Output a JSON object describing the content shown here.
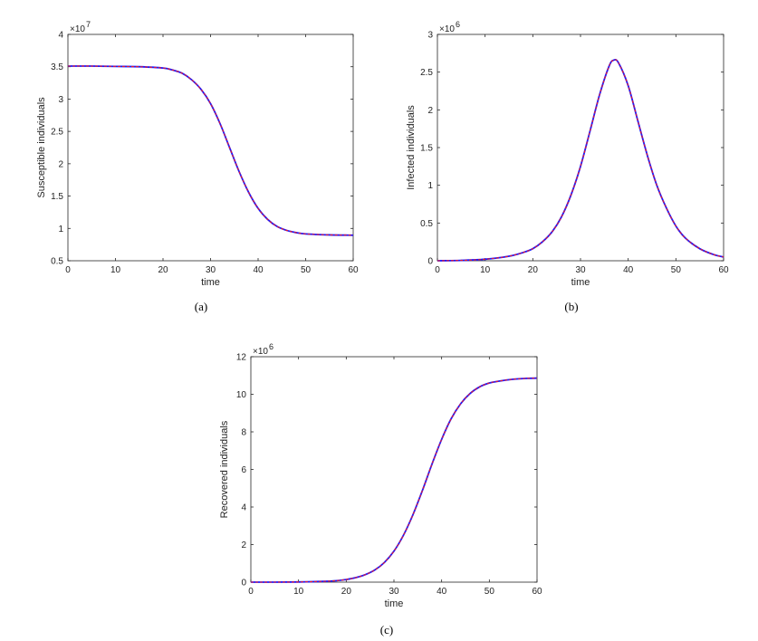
{
  "colors": {
    "axis": "#262626",
    "series_a": "#1a1aff",
    "series_b": "#e8162b",
    "background": "#ffffff"
  },
  "chart_data": [
    {
      "type": "line",
      "caption": "(a)",
      "xlabel": "time",
      "ylabel": "Susceptible individuals",
      "multiplier": "×10",
      "exponent": "7",
      "xlim": [
        0,
        60
      ],
      "ylim": [
        0.5,
        4
      ],
      "xticks": [
        0,
        10,
        20,
        30,
        40,
        50,
        60
      ],
      "yticks": [
        0.5,
        1,
        1.5,
        2,
        2.5,
        3,
        3.5,
        4
      ],
      "ytick_labels": [
        "0.5",
        "1",
        "1.5",
        "2",
        "2.5",
        "3",
        "3.5",
        "4"
      ],
      "grid": false,
      "x": [
        0,
        5,
        10,
        15,
        20,
        22,
        24,
        26,
        28,
        30,
        32,
        34,
        36,
        38,
        40,
        42,
        44,
        46,
        48,
        50,
        55,
        60
      ],
      "series": [
        {
          "values": [
            3.51,
            3.51,
            3.505,
            3.5,
            3.48,
            3.45,
            3.4,
            3.3,
            3.15,
            2.93,
            2.62,
            2.25,
            1.88,
            1.56,
            1.31,
            1.14,
            1.03,
            0.97,
            0.935,
            0.915,
            0.9,
            0.895
          ]
        },
        {
          "values": [
            3.51,
            3.51,
            3.505,
            3.5,
            3.48,
            3.45,
            3.4,
            3.3,
            3.15,
            2.93,
            2.62,
            2.25,
            1.88,
            1.56,
            1.31,
            1.14,
            1.03,
            0.97,
            0.935,
            0.915,
            0.9,
            0.895
          ]
        }
      ]
    },
    {
      "type": "line",
      "caption": "(b)",
      "xlabel": "time",
      "ylabel": "Infected individuals",
      "multiplier": "×10",
      "exponent": "6",
      "xlim": [
        0,
        60
      ],
      "ylim": [
        0,
        3
      ],
      "xticks": [
        0,
        10,
        20,
        30,
        40,
        50,
        60
      ],
      "yticks": [
        0,
        0.5,
        1,
        1.5,
        2,
        2.5,
        3
      ],
      "ytick_labels": [
        "0",
        "0.5",
        "1",
        "1.5",
        "2",
        "2.5",
        "3"
      ],
      "grid": false,
      "x": [
        0,
        5,
        10,
        15,
        18,
        20,
        22,
        24,
        26,
        28,
        30,
        32,
        34,
        36,
        37,
        38,
        40,
        42,
        44,
        46,
        48,
        50,
        52,
        55,
        58,
        60
      ],
      "series": [
        {
          "values": [
            0.0,
            0.005,
            0.02,
            0.06,
            0.11,
            0.16,
            0.25,
            0.38,
            0.58,
            0.87,
            1.25,
            1.72,
            2.2,
            2.58,
            2.66,
            2.62,
            2.32,
            1.86,
            1.4,
            1.0,
            0.7,
            0.46,
            0.3,
            0.16,
            0.08,
            0.05
          ]
        },
        {
          "values": [
            0.0,
            0.005,
            0.02,
            0.06,
            0.11,
            0.16,
            0.25,
            0.38,
            0.58,
            0.87,
            1.25,
            1.72,
            2.2,
            2.58,
            2.66,
            2.62,
            2.32,
            1.86,
            1.4,
            1.0,
            0.7,
            0.46,
            0.3,
            0.16,
            0.08,
            0.05
          ]
        }
      ]
    },
    {
      "type": "line",
      "caption": "(c)",
      "xlabel": "time",
      "ylabel": "Recovered individuals",
      "multiplier": "×10",
      "exponent": "6",
      "xlim": [
        0,
        60
      ],
      "ylim": [
        0,
        12
      ],
      "xticks": [
        0,
        10,
        20,
        30,
        40,
        50,
        60
      ],
      "yticks": [
        0,
        2,
        4,
        6,
        8,
        10,
        12
      ],
      "ytick_labels": [
        "0",
        "2",
        "4",
        "6",
        "8",
        "10",
        "12"
      ],
      "grid": false,
      "x": [
        0,
        5,
        10,
        15,
        18,
        20,
        22,
        24,
        26,
        28,
        30,
        32,
        34,
        36,
        38,
        40,
        42,
        44,
        46,
        48,
        50,
        52,
        55,
        58,
        60
      ],
      "series": [
        {
          "values": [
            0.0,
            0.0,
            0.01,
            0.04,
            0.08,
            0.14,
            0.24,
            0.4,
            0.65,
            1.05,
            1.65,
            2.5,
            3.6,
            4.9,
            6.3,
            7.6,
            8.7,
            9.5,
            10.05,
            10.4,
            10.6,
            10.7,
            10.8,
            10.85,
            10.86
          ]
        },
        {
          "values": [
            0.0,
            0.0,
            0.01,
            0.04,
            0.08,
            0.14,
            0.24,
            0.4,
            0.65,
            1.05,
            1.65,
            2.5,
            3.6,
            4.9,
            6.3,
            7.6,
            8.7,
            9.5,
            10.05,
            10.4,
            10.6,
            10.7,
            10.8,
            10.85,
            10.86
          ]
        }
      ]
    }
  ]
}
